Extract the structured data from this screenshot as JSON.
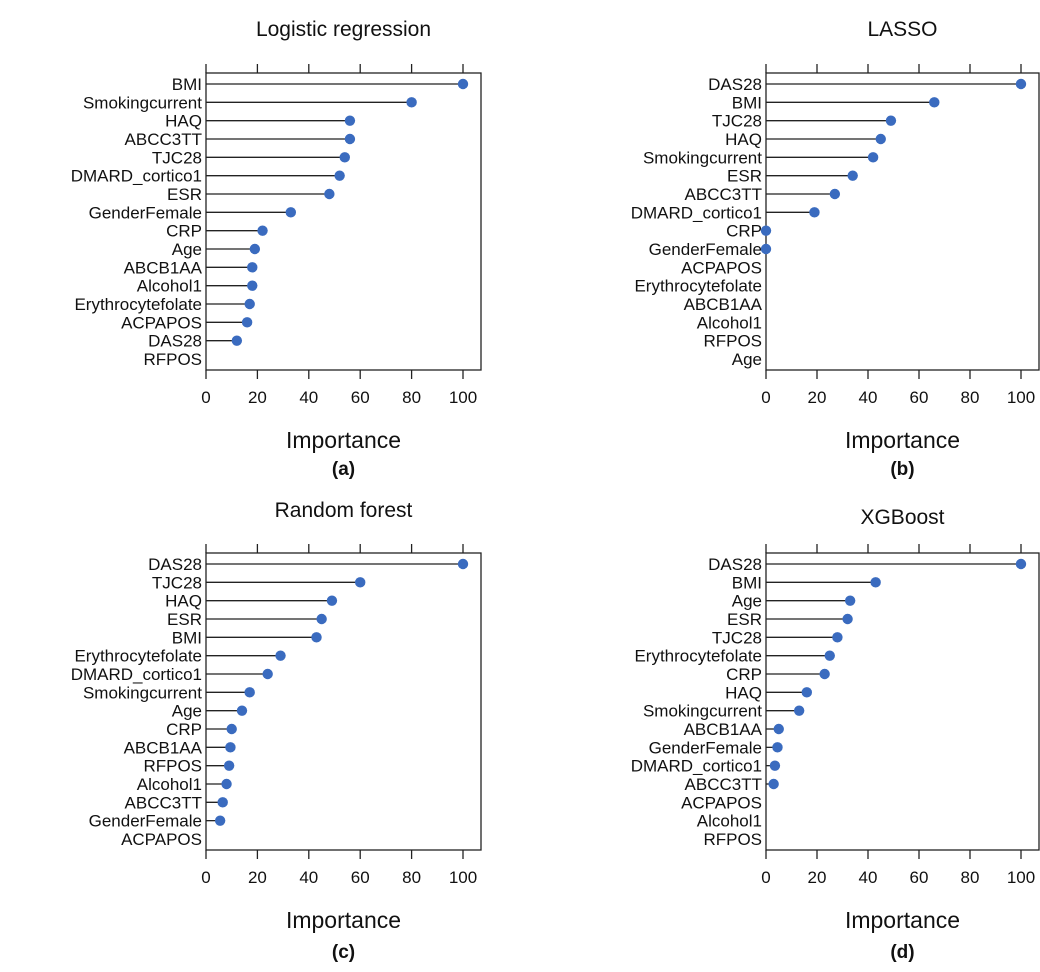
{
  "colors": {
    "dot": "#3a6bbf",
    "axis": "#222222",
    "text": "#111111"
  },
  "chart_data": [
    {
      "type": "lollipop",
      "panel_label": "(a)",
      "title": "Logistic regression",
      "xlabel": "Importance",
      "xlim": [
        0,
        100
      ],
      "xticks": [
        0,
        20,
        40,
        60,
        80,
        100
      ],
      "categories": [
        "BMI",
        "Smokingcurrent",
        "HAQ",
        "ABCC3TT",
        "TJC28",
        "DMARD_cortico1",
        "ESR",
        "GenderFemale",
        "CRP",
        "Age",
        "ABCB1AA",
        "Alcohol1",
        "Erythrocytefolate",
        "ACPAPOS",
        "DAS28",
        "RFPOS"
      ],
      "values": [
        100,
        80,
        56,
        56,
        54,
        52,
        48,
        33,
        22,
        19,
        18,
        18,
        17,
        16,
        12,
        null
      ]
    },
    {
      "type": "lollipop",
      "panel_label": "(b)",
      "title": "LASSO",
      "xlabel": "Importance",
      "xlim": [
        0,
        100
      ],
      "xticks": [
        0,
        20,
        40,
        60,
        80,
        100
      ],
      "categories": [
        "DAS28",
        "BMI",
        "TJC28",
        "HAQ",
        "Smokingcurrent",
        "ESR",
        "ABCC3TT",
        "DMARD_cortico1",
        "CRP",
        "GenderFemale",
        "ACPAPOS",
        "Erythrocytefolate",
        "ABCB1AA",
        "Alcohol1",
        "RFPOS",
        "Age"
      ],
      "values": [
        100,
        66,
        49,
        45,
        42,
        34,
        27,
        19,
        0,
        0,
        null,
        null,
        null,
        null,
        null,
        null
      ]
    },
    {
      "type": "lollipop",
      "panel_label": "(c)",
      "title": "Random forest",
      "xlabel": "Importance",
      "xlim": [
        0,
        100
      ],
      "xticks": [
        0,
        20,
        40,
        60,
        80,
        100
      ],
      "categories": [
        "DAS28",
        "TJC28",
        "HAQ",
        "ESR",
        "BMI",
        "Erythrocytefolate",
        "DMARD_cortico1",
        "Smokingcurrent",
        "Age",
        "CRP",
        "ABCB1AA",
        "RFPOS",
        "Alcohol1",
        "ABCC3TT",
        "GenderFemale",
        "ACPAPOS"
      ],
      "values": [
        100,
        60,
        49,
        45,
        43,
        29,
        24,
        17,
        14,
        10,
        9.5,
        9,
        8,
        6.5,
        5.5,
        null
      ]
    },
    {
      "type": "lollipop",
      "panel_label": "(d)",
      "title": "XGBoost",
      "xlabel": "Importance",
      "xlim": [
        0,
        100
      ],
      "xticks": [
        0,
        20,
        40,
        60,
        80,
        100
      ],
      "categories": [
        "DAS28",
        "BMI",
        "Age",
        "ESR",
        "TJC28",
        "Erythrocytefolate",
        "CRP",
        "HAQ",
        "Smokingcurrent",
        "ABCB1AA",
        "GenderFemale",
        "DMARD_cortico1",
        "ABCC3TT",
        "ACPAPOS",
        "Alcohol1",
        "RFPOS"
      ],
      "values": [
        100,
        43,
        33,
        32,
        28,
        25,
        23,
        16,
        13,
        5,
        4.5,
        3.5,
        3,
        null,
        null,
        null
      ]
    }
  ]
}
